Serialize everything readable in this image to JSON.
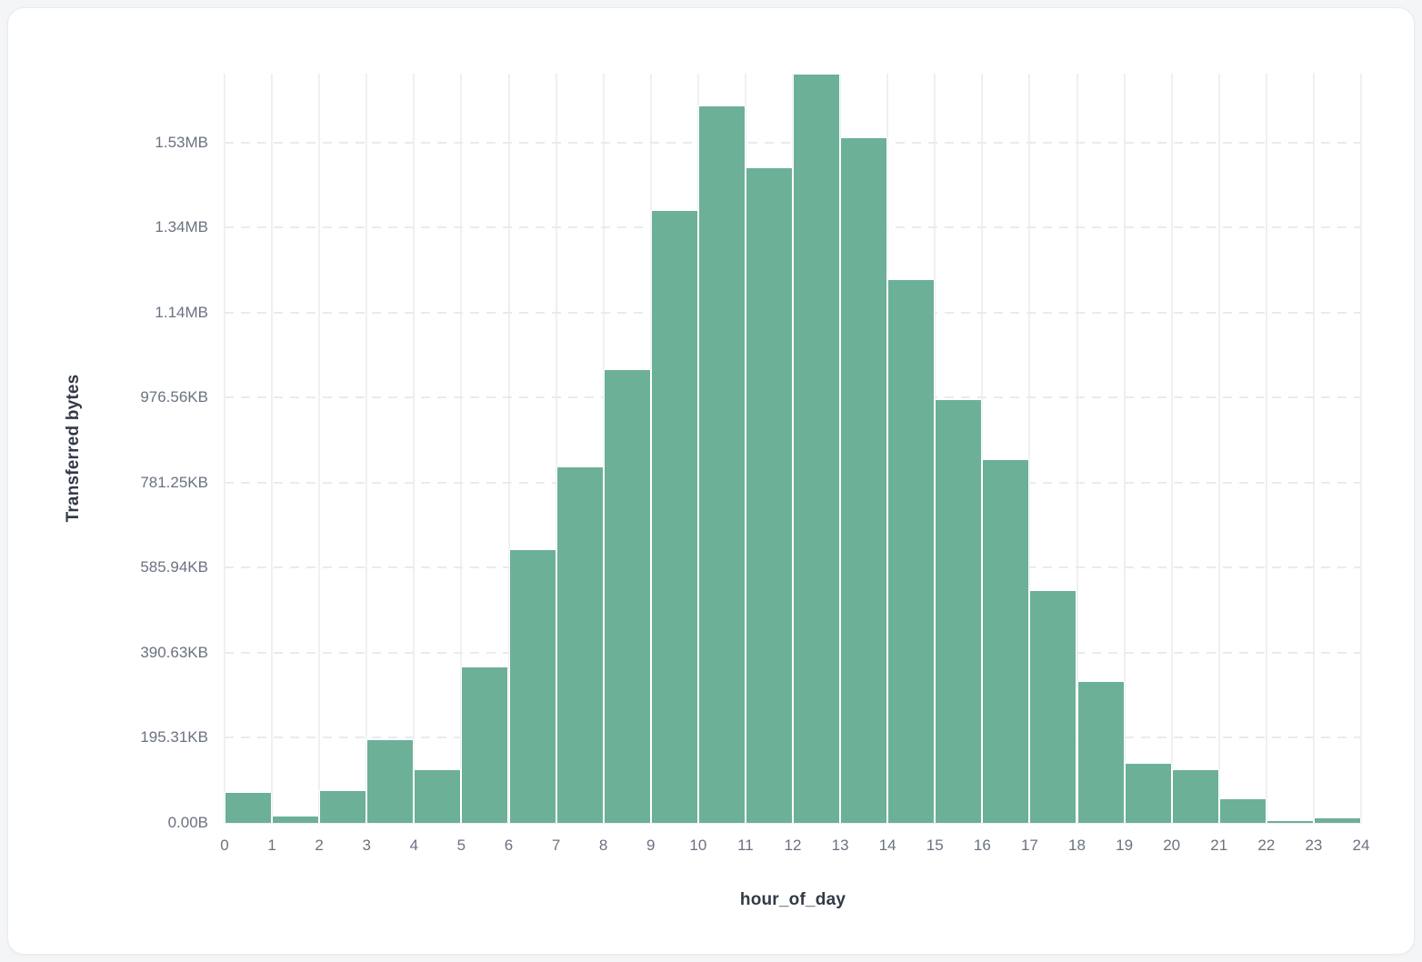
{
  "chart_data": {
    "type": "bar",
    "subtype": "histogram",
    "title": "",
    "xlabel": "hour_of_day",
    "ylabel": "Transferred bytes",
    "categories": [
      0,
      1,
      2,
      3,
      4,
      5,
      6,
      7,
      8,
      9,
      10,
      11,
      12,
      13,
      14,
      15,
      16,
      17,
      18,
      19,
      20,
      21,
      22,
      23
    ],
    "values_bytes": [
      73000,
      17000,
      77000,
      197000,
      126000,
      368000,
      644000,
      838000,
      1067000,
      1442000,
      1688000,
      1542000,
      1762000,
      1613000,
      1279000,
      997000,
      855000,
      548000,
      334000,
      141000,
      126000,
      58000,
      6000,
      13000
    ],
    "xlim": [
      0,
      24
    ],
    "ylim": [
      0,
      1762500
    ],
    "xticks": [
      0,
      1,
      2,
      3,
      4,
      5,
      6,
      7,
      8,
      9,
      10,
      11,
      12,
      13,
      14,
      15,
      16,
      17,
      18,
      19,
      20,
      21,
      22,
      23,
      24
    ],
    "yticks": [
      {
        "value": 0,
        "label": "0.00B"
      },
      {
        "value": 200000,
        "label": "195.31KB"
      },
      {
        "value": 400000,
        "label": "390.63KB"
      },
      {
        "value": 600000,
        "label": "585.94KB"
      },
      {
        "value": 800000,
        "label": "781.25KB"
      },
      {
        "value": 1000000,
        "label": "976.56KB"
      },
      {
        "value": 1200000,
        "label": "1.14MB"
      },
      {
        "value": 1400000,
        "label": "1.34MB"
      },
      {
        "value": 1600000,
        "label": "1.53MB"
      }
    ],
    "grid": {
      "vertical": "solid",
      "horizontal": "dashed"
    },
    "legend_position": "none",
    "colors": {
      "bar": "#6cb098",
      "axis_label": "#6b7280",
      "axis_title": "#333a46",
      "grid_vertical": "#eef0f4",
      "grid_horizontal": "#e8ebf1",
      "card_bg": "#ffffff",
      "card_border": "#e8ebef",
      "page_bg": "#f4f5f7"
    }
  }
}
